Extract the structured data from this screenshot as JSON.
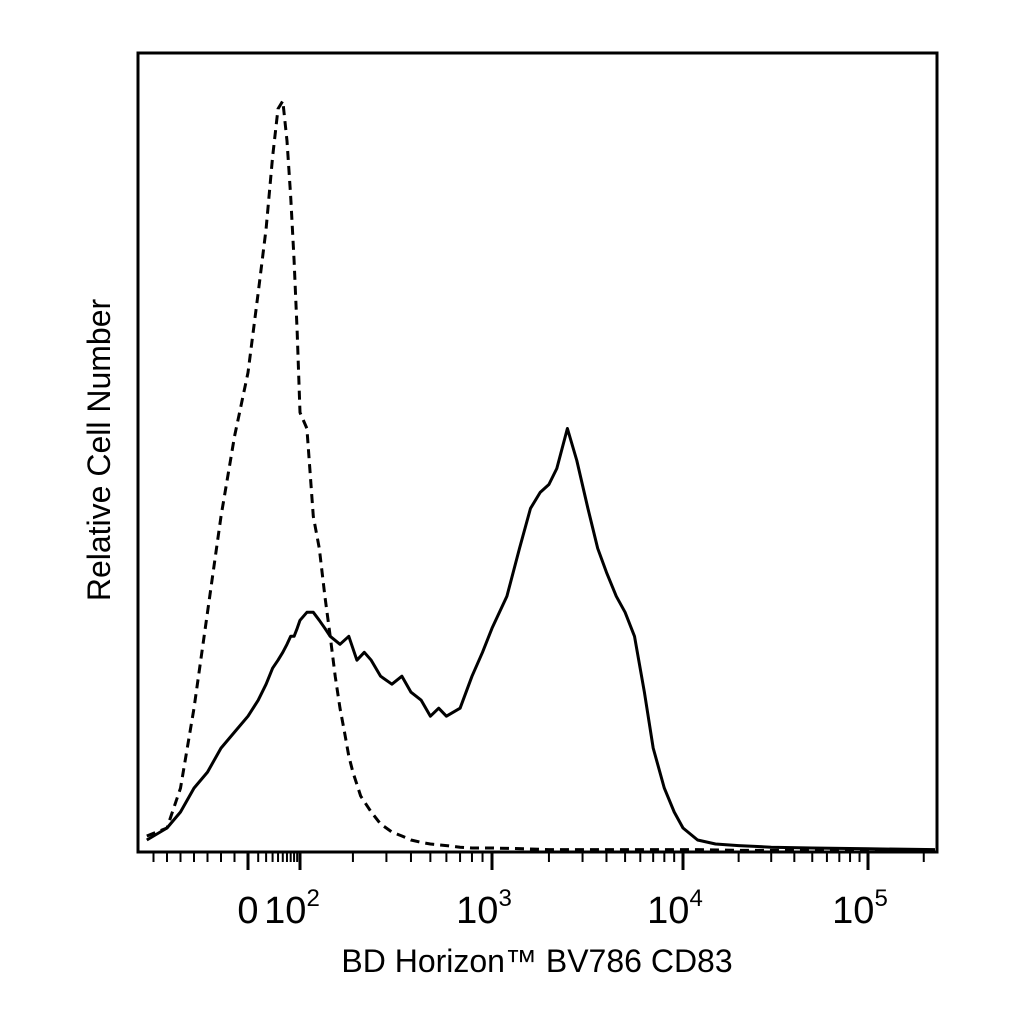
{
  "chart_data": {
    "type": "line",
    "title": "",
    "xlabel": "BD Horizon™ BV786 CD83",
    "ylabel": "Relative Cell Number",
    "x_scale": "biexponential (logicle)",
    "xlim": [
      -80,
      230000
    ],
    "ylim": [
      0,
      100
    ],
    "grid": false,
    "legend": "none",
    "x_ticks": [
      {
        "value": 0,
        "label": "0",
        "exp": ""
      },
      {
        "value": 100,
        "label": "10",
        "exp": "2"
      },
      {
        "value": 1000,
        "label": "10",
        "exp": "3"
      },
      {
        "value": 10000,
        "label": "10",
        "exp": "4"
      },
      {
        "value": 100000,
        "label": "10",
        "exp": "5"
      }
    ],
    "series": [
      {
        "style": "dashed",
        "color": "#000000",
        "x": [
          -75,
          -60,
          -50,
          -40,
          -30,
          -20,
          -10,
          0,
          10,
          20,
          30,
          40,
          50,
          60,
          70,
          80,
          90,
          100,
          110,
          120,
          130,
          140,
          150,
          160,
          170,
          180,
          190,
          200,
          220,
          250,
          280,
          320,
          360,
          400,
          450,
          500,
          600,
          700,
          800,
          900,
          1000,
          1500,
          2000,
          3000,
          5000,
          8000,
          12000,
          20000,
          50000,
          100000,
          230000
        ],
        "y": [
          2,
          3,
          8,
          18,
          30,
          42,
          52,
          60,
          70,
          78,
          87,
          93,
          94,
          89,
          82,
          74,
          65,
          55,
          53,
          42,
          38,
          32,
          27,
          22,
          18,
          15,
          12,
          10,
          7,
          5,
          3.5,
          2.5,
          2,
          1.5,
          1.2,
          1,
          0.8,
          0.6,
          0.5,
          0.5,
          0.5,
          0.4,
          0.3,
          0.3,
          0.3,
          0.3,
          0.3,
          0.2,
          0.2,
          0.2,
          0.2
        ]
      },
      {
        "style": "solid",
        "color": "#000000",
        "x": [
          -75,
          -60,
          -50,
          -40,
          -30,
          -20,
          -10,
          0,
          10,
          20,
          30,
          40,
          50,
          60,
          70,
          80,
          90,
          100,
          110,
          120,
          130,
          140,
          150,
          170,
          190,
          210,
          230,
          250,
          280,
          320,
          360,
          400,
          450,
          500,
          550,
          600,
          700,
          800,
          900,
          1000,
          1200,
          1400,
          1600,
          1800,
          2000,
          2200,
          2500,
          2800,
          3200,
          3600,
          4000,
          4500,
          5000,
          5600,
          6300,
          7000,
          8000,
          9000,
          10000,
          12000,
          15000,
          20000,
          30000,
          50000,
          100000,
          230000
        ],
        "y": [
          1.5,
          3,
          5,
          8,
          10,
          13,
          15,
          17,
          19,
          21,
          23,
          24,
          25,
          26,
          27,
          27,
          28,
          29,
          30,
          30,
          29,
          28,
          27,
          26,
          27,
          24,
          25,
          24,
          22,
          21,
          22,
          20,
          19,
          17,
          18,
          17,
          18,
          22,
          25,
          28,
          32,
          38,
          43,
          45,
          46,
          48,
          53,
          49,
          43,
          38,
          35,
          32,
          30,
          27,
          20,
          13,
          8,
          5,
          3,
          1.5,
          1,
          0.8,
          0.6,
          0.5,
          0.4,
          0.3
        ]
      }
    ]
  }
}
